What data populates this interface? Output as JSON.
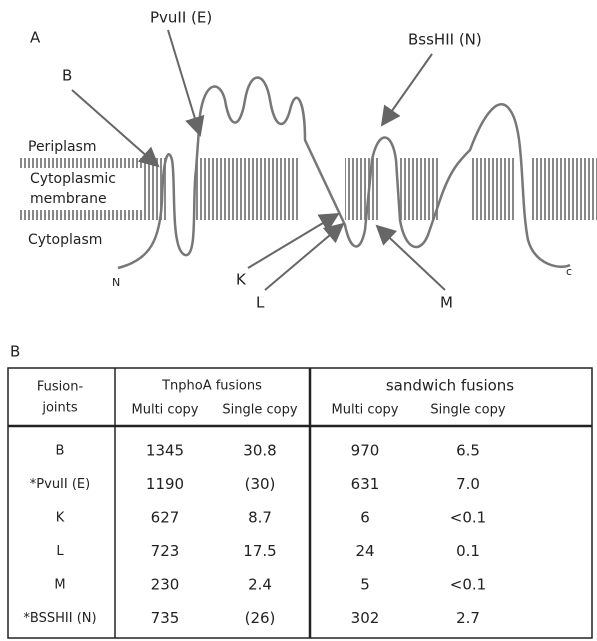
{
  "panel_a": {
    "label": "A",
    "regions": {
      "periplasm": "Periplasm",
      "membrane": [
        "Cytoplasmic",
        "membrane"
      ],
      "cytoplasm": "Cytoplasm"
    },
    "sites": {
      "b": "B",
      "pvuii": "PvuII (E)",
      "bsshii": "BssHII (N)",
      "k": "K",
      "l": "L",
      "m": "M"
    },
    "termini": {
      "n": "N",
      "c": "c"
    }
  },
  "panel_b": {
    "label": "B",
    "table": {
      "header": {
        "first": [
          "Fusion-",
          "joints"
        ],
        "groups": [
          "TnphoA fusions",
          "sandwich fusions"
        ],
        "sub": [
          "Multi copy",
          "Single copy",
          "Multi copy",
          "Single copy"
        ]
      },
      "rows": [
        [
          "B",
          "1345",
          "30.8",
          "970",
          "6.5"
        ],
        [
          "*PvuII (E)",
          "1190",
          "(30)",
          "631",
          "7.0"
        ],
        [
          "K",
          "627",
          "8.7",
          "6",
          "<0.1"
        ],
        [
          "L",
          "723",
          "17.5",
          "24",
          "0.1"
        ],
        [
          "M",
          "230",
          "2.4",
          "5",
          "<0.1"
        ],
        [
          "*BSSHII (N)",
          "735",
          "(26)",
          "302",
          "2.7"
        ]
      ]
    }
  }
}
